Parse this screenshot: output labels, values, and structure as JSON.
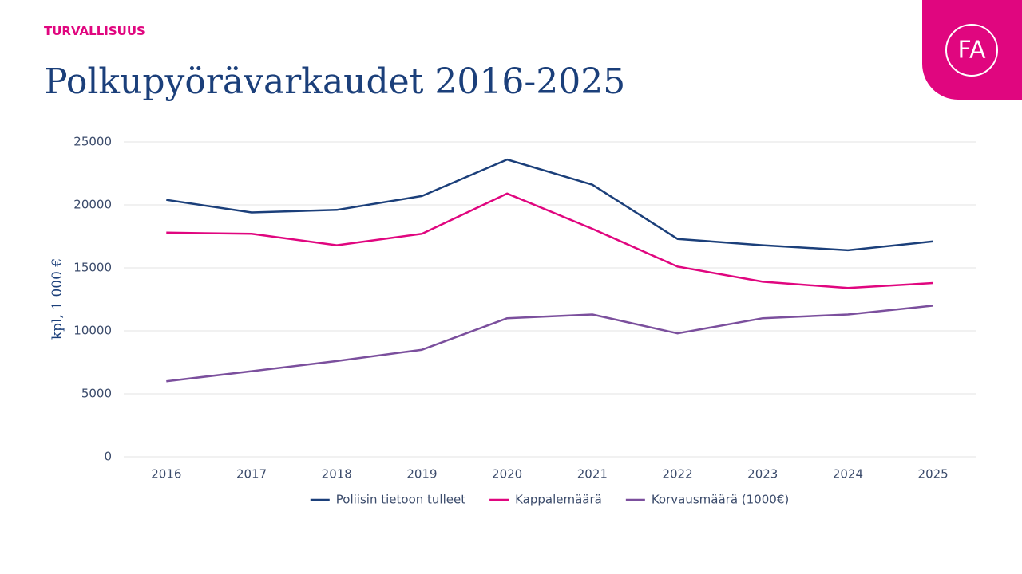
{
  "header": {
    "section": "TURVALLISUUS",
    "logo": "FA"
  },
  "chart_data": {
    "type": "line",
    "title": "Polkupyörävarkaudet 2016-2025",
    "ylabel": "kpl, 1 000 €",
    "categories": [
      "2016",
      "2017",
      "2018",
      "2019",
      "2020",
      "2021",
      "2022",
      "2023",
      "2024",
      "2025"
    ],
    "series": [
      {
        "name": "Poliisin tietoon tulleet",
        "color": "#1b3f7a",
        "values": [
          20400,
          19400,
          19600,
          20700,
          23600,
          21600,
          17300,
          16800,
          16400,
          17100
        ]
      },
      {
        "name": "Kappalemäärä",
        "color": "#e0067f",
        "values": [
          17800,
          17700,
          16800,
          17700,
          20900,
          18100,
          15100,
          13900,
          13400,
          13800
        ]
      },
      {
        "name": "Korvausmäärä (1000€)",
        "color": "#7b4f9d",
        "values": [
          6000,
          6800,
          7600,
          8500,
          11000,
          11300,
          9800,
          11000,
          11300,
          12000
        ]
      }
    ],
    "ylim": [
      0,
      25000
    ],
    "yticks": [
      0,
      5000,
      10000,
      15000,
      20000,
      25000
    ],
    "grid": true,
    "legend": "bottom"
  }
}
